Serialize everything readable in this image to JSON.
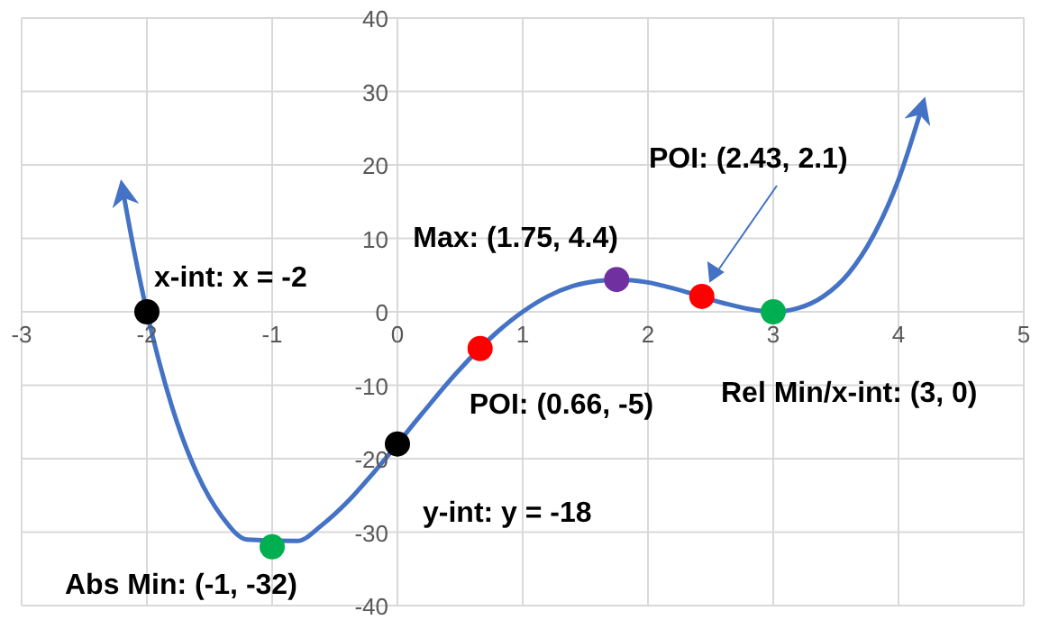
{
  "chart_data": {
    "type": "line",
    "xlim": [
      -3,
      5
    ],
    "ylim": [
      -40,
      40
    ],
    "xticks": [
      -3,
      -2,
      -1,
      0,
      1,
      2,
      3,
      4,
      5
    ],
    "yticks": [
      -40,
      -30,
      -20,
      -10,
      0,
      10,
      20,
      30,
      40
    ],
    "grid": true,
    "marker": "none",
    "series": [
      {
        "color": "#4472c4",
        "x": [
          -2.2,
          -2.1,
          -2,
          -1.8,
          -1.6,
          -1.4,
          -1.2,
          -0.8,
          -0.6,
          -0.4,
          -0.2,
          0.2,
          0.4,
          0.8,
          1,
          1.2,
          1.4,
          1.6,
          1.75,
          2,
          2.2,
          2.6,
          2.8,
          3,
          3.2,
          3.4,
          3.6,
          3.8,
          4,
          4.2
        ],
        "values": [
          17.3,
          8.1,
          0,
          -12.9,
          -22,
          -27.9,
          -31,
          -31.2,
          -29,
          -25.9,
          -22.1,
          -13.8,
          -9.7,
          -2.7,
          0,
          2.1,
          3.5,
          4.2,
          4.4,
          4,
          3.2,
          1.2,
          0.4,
          0,
          0.5,
          2.1,
          5.2,
          10.4,
          18,
          28.6
        ]
      },
      {
        "type": "scatter",
        "marker": "circle",
        "x": [
          -2,
          -1,
          0,
          0.66,
          1.75,
          2.43,
          3
        ],
        "values": [
          0,
          -32,
          -18,
          -5,
          4.4,
          2.1,
          0
        ],
        "colors": [
          "#000000",
          "#00b050",
          "#000000",
          "#ff0000",
          "#7030a0",
          "#ff0000",
          "#00b050"
        ]
      }
    ],
    "annotations": [
      {
        "text": "x-int: x = -2",
        "x": -2,
        "y": 0
      },
      {
        "text": "Abs Min: (-1, -32)",
        "x": -1,
        "y": -32
      },
      {
        "text": "y-int: y = -18",
        "x": 0,
        "y": -18
      },
      {
        "text": "POI: (0.66, -5)",
        "x": 0.66,
        "y": -5
      },
      {
        "text": "Max: (1.75, 4.4)",
        "x": 1.75,
        "y": 4.4
      },
      "POI: (2.43, 2.1)",
      {
        "text": "Rel Min/x-int: (3, 0)",
        "x": 3,
        "y": 0
      }
    ]
  }
}
